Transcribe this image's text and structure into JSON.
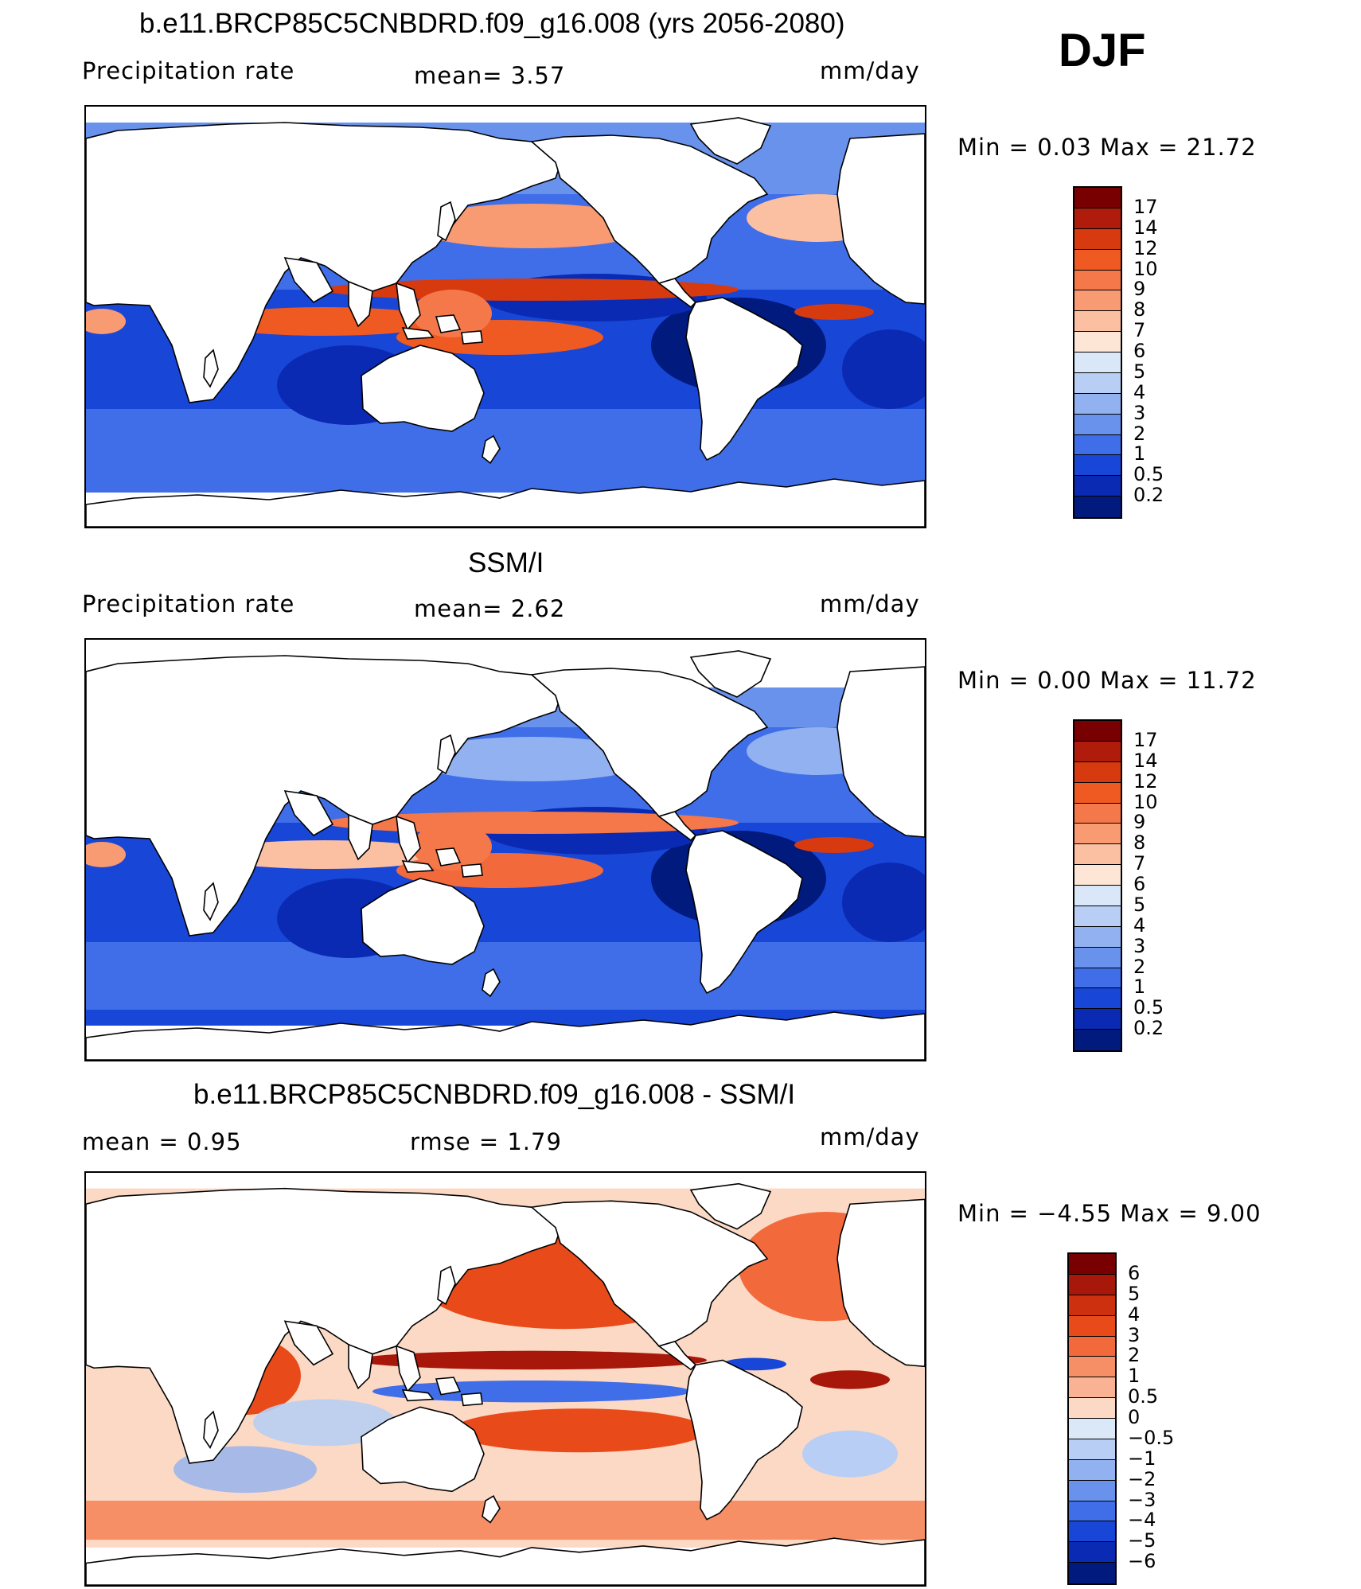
{
  "season": "DJF",
  "panels": [
    {
      "title": "b.e11.BRCP85C5CNBDRD.f09_g16.008 (yrs 2056-2080)",
      "left_label": "Precipitation  rate",
      "center_label": "mean=    3.57",
      "units": "mm/day",
      "minmax": "Min  =      0.03  Max  =     21.72",
      "kind": "precip",
      "scale": {
        "labels": [
          "17",
          "14",
          "12",
          "10",
          "9",
          "8",
          "7",
          "6",
          "5",
          "4",
          "3",
          "2",
          "1",
          "0.5",
          "0.2"
        ],
        "colors": [
          "#780000",
          "#b01c0c",
          "#d83a10",
          "#ee5a22",
          "#f5784a",
          "#f89a72",
          "#fbbfa2",
          "#fde6d5",
          "#d9e7f8",
          "#b8cef4",
          "#91b1f0",
          "#6992ec",
          "#3f6ee8",
          "#1846d6",
          "#0a2ab4",
          "#001a7e"
        ]
      }
    },
    {
      "title": "SSM/I",
      "left_label": "Precipitation  rate",
      "center_label": "mean=    2.62",
      "units": "mm/day",
      "minmax": "Min  =      0.00  Max  =     11.72",
      "kind": "precip",
      "scale": {
        "labels": [
          "17",
          "14",
          "12",
          "10",
          "9",
          "8",
          "7",
          "6",
          "5",
          "4",
          "3",
          "2",
          "1",
          "0.5",
          "0.2"
        ],
        "colors": [
          "#780000",
          "#b01c0c",
          "#d83a10",
          "#ee5a22",
          "#f5784a",
          "#f89a72",
          "#fbbfa2",
          "#fde6d5",
          "#d9e7f8",
          "#b8cef4",
          "#91b1f0",
          "#6992ec",
          "#3f6ee8",
          "#1846d6",
          "#0a2ab4",
          "#001a7e"
        ]
      }
    },
    {
      "title": "b.e11.BRCP85C5CNBDRD.f09_g16.008 - SSM/I",
      "left_label": "mean  =     0.95",
      "center_label": "rmse  =     1.79",
      "units": "mm/day",
      "minmax": "Min  =    −4.55  Max  =       9.00",
      "kind": "diff",
      "scale": {
        "labels": [
          "6",
          "5",
          "4",
          "3",
          "2",
          "1",
          "0.5",
          "0",
          "−0.5",
          "−1",
          "−2",
          "−3",
          "−4",
          "−5",
          "−6"
        ],
        "colors": [
          "#780000",
          "#a8180a",
          "#cc300e",
          "#e84a1a",
          "#f26a3c",
          "#f68e66",
          "#f9b394",
          "#fcd9c4",
          "#dbe8f8",
          "#b8cef4",
          "#91b1f0",
          "#6992ec",
          "#3f6ee8",
          "#1846d6",
          "#0a2ab4",
          "#001a7e"
        ]
      }
    }
  ]
}
